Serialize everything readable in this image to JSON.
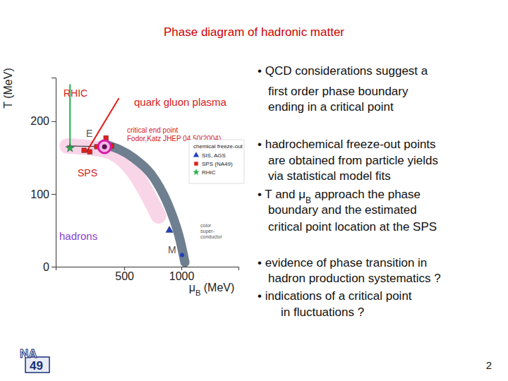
{
  "title": "Phase diagram of hadronic matter",
  "chart_data": {
    "type": "line",
    "x_label": [
      {
        "text": "μ"
      },
      {
        "text": "B",
        "sub": true
      },
      {
        "text": " (MeV)"
      }
    ],
    "y_label": "T (MeV)",
    "xlim": [
      -100,
      1500
    ],
    "xticks": [
      500,
      1000
    ],
    "ylim": [
      0,
      260
    ],
    "yticks": [
      0,
      100,
      200
    ],
    "legend_title": "chemical freeze-out",
    "series": [
      {
        "name": "SIS, AGS",
        "type": "scatter",
        "color": "#2040c0",
        "marker": "triangle",
        "x": [
          895
        ],
        "values": [
          50
        ]
      },
      {
        "name": "SPS (NA49)",
        "type": "scatter",
        "color": "#e0201b",
        "marker": "square",
        "x": [
          148,
          198,
          259,
          340,
          389
        ],
        "values": [
          160,
          158,
          165,
          177,
          166
        ]
      },
      {
        "name": "RHIC",
        "type": "scatter",
        "color": "#22b14c",
        "marker": "star",
        "x": [
          25
        ],
        "values": [
          163
        ]
      }
    ],
    "freeze_out_band": {
      "color": "#f6c3de",
      "x": [
        0,
        340,
        586,
        800
      ],
      "values": [
        166,
        160,
        130,
        70
      ]
    },
    "crossover": {
      "color": "#444444",
      "x": [
        0,
        327
      ],
      "values": [
        166,
        165
      ]
    },
    "phase_boundary": {
      "color": "#6e7f90",
      "x": [
        340,
        586,
        772,
        895,
        988,
        1031
      ],
      "values": [
        168,
        149,
        119,
        81,
        37,
        6
      ]
    },
    "rhic_trajectory": {
      "color": "#22b14c",
      "x": [
        25,
        25
      ],
      "values": [
        250,
        163
      ]
    },
    "sps_trajectory": {
      "color": "#e0201b",
      "x": [
        170,
        450
      ],
      "values": [
        158,
        231
      ]
    },
    "critical_point": {
      "label": "E",
      "color": "#d61aa8",
      "x": 327,
      "value": 165
    },
    "point_m": {
      "label": "M",
      "color": "#2040c0",
      "x": 1006,
      "value": 16
    },
    "annotations": [
      {
        "text": "RHIC",
        "color": "#d42020"
      },
      {
        "text": "quark gluon plasma",
        "color": "#d42020"
      },
      {
        "text": "critical end point",
        "color": "#d42020"
      },
      {
        "text": "Fodor,Katz JHEP 04,50(2004)",
        "color": "#d42020"
      },
      {
        "text": "SPS",
        "color": "#d42020"
      },
      {
        "text": "hadrons",
        "color": "#8a3fd0"
      },
      {
        "text": "color",
        "color": "#555555"
      },
      {
        "text": "super-",
        "color": "#555555"
      },
      {
        "text": "conductor",
        "color": "#555555"
      }
    ]
  },
  "bullets": [
    "• QCD considerations suggest a",
    "first order phase boundary",
    "ending in a critical point",
    "• hadrochemical freeze-out points",
    "are obtained from particle yields",
    "via statistical model fits",
    [
      {
        "text": "• T and μ"
      },
      {
        "text": "B",
        "sub": true
      },
      {
        "text": " approach the phase"
      }
    ],
    "boundary and the estimated",
    "critical point location at the SPS",
    "• evidence of phase transition in",
    "hadron production systematics ?",
    "• indications of  a critical point",
    "in fluctuations ?"
  ],
  "logo": {
    "top": "NA",
    "bottom": "49"
  },
  "page_number": "2"
}
